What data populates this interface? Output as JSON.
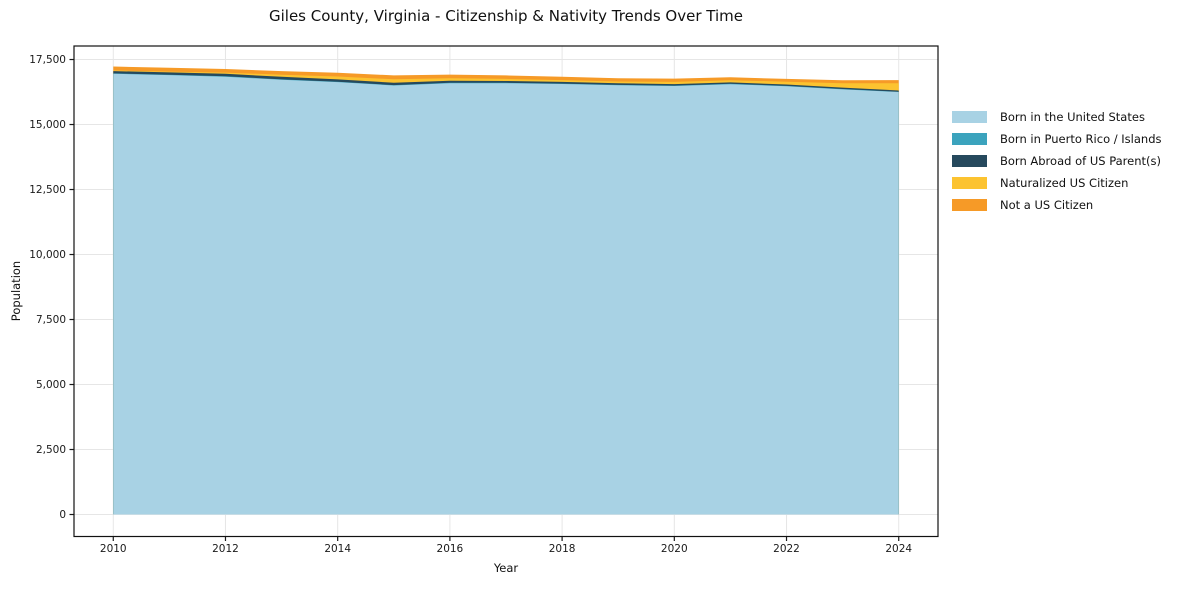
{
  "figure": {
    "background": "#ffffff",
    "spine_color": "#111111",
    "grid_color": "#e6e6e6",
    "tick_color": "#1a1a1a"
  },
  "chart_data": {
    "type": "area",
    "stacked": true,
    "title": "Giles County, Virginia - Citizenship & Nativity Trends Over Time",
    "xlabel": "Year",
    "ylabel": "Population",
    "x": [
      2010,
      2011,
      2012,
      2013,
      2014,
      2015,
      2016,
      2017,
      2018,
      2019,
      2020,
      2021,
      2022,
      2023,
      2024
    ],
    "series": [
      {
        "name": "Born in the United States",
        "color": "#a8d2e4",
        "values": [
          16950,
          16900,
          16840,
          16720,
          16630,
          16500,
          16590,
          16590,
          16560,
          16510,
          16480,
          16550,
          16470,
          16350,
          16250
        ]
      },
      {
        "name": "Born in Puerto Rico / Islands",
        "color": "#3ba3bd",
        "values": [
          15,
          15,
          15,
          15,
          15,
          15,
          15,
          15,
          15,
          15,
          15,
          15,
          15,
          15,
          10
        ]
      },
      {
        "name": "Born Abroad of US Parent(s)",
        "color": "#26495d",
        "values": [
          90,
          90,
          95,
          100,
          90,
          95,
          80,
          70,
          65,
          60,
          60,
          55,
          55,
          55,
          50
        ]
      },
      {
        "name": "Naturalized US Citizen",
        "color": "#fcc330",
        "values": [
          25,
          30,
          45,
          80,
          110,
          130,
          95,
          80,
          70,
          70,
          85,
          85,
          105,
          170,
          275
        ]
      },
      {
        "name": "Not a US Citizen",
        "color": "#f69a27",
        "values": [
          150,
          145,
          140,
          140,
          145,
          150,
          140,
          135,
          130,
          125,
          125,
          110,
          110,
          115,
          125
        ]
      }
    ],
    "xlim": [
      2009.3,
      2024.7
    ],
    "ylim": [
      -846,
      18020
    ],
    "xticks": {
      "values": [
        2010,
        2012,
        2014,
        2016,
        2018,
        2020,
        2022,
        2024
      ],
      "labels": [
        "2010",
        "2012",
        "2014",
        "2016",
        "2018",
        "2020",
        "2022",
        "2024"
      ]
    },
    "yticks": {
      "values": [
        0,
        2500,
        5000,
        7500,
        10000,
        12500,
        15000,
        17500
      ],
      "labels": [
        "0",
        "2,500",
        "5,000",
        "7,500",
        "10,000",
        "12,500",
        "15,000",
        "17,500"
      ]
    },
    "grid": true,
    "legend_position": "right"
  }
}
